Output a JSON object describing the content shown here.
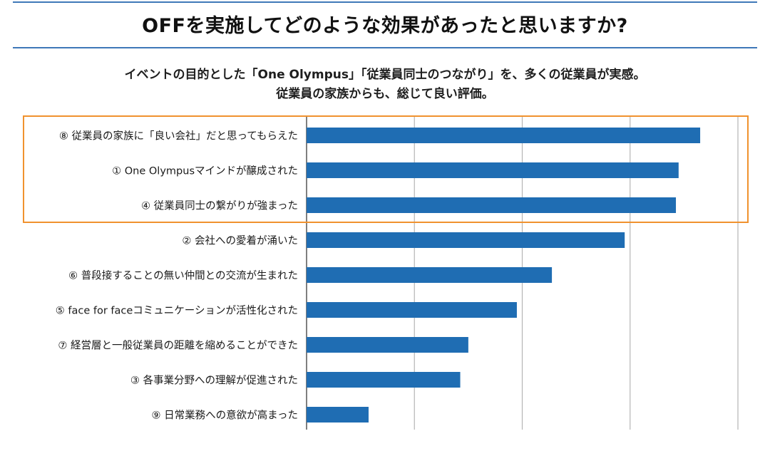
{
  "header": {
    "title": "OFFを実施してどのような効果があったと思いますか?",
    "subtitle_line1": "イベントの目的とした「One Olympus」「従業員同士のつながり」を、多くの従業員が実感。",
    "subtitle_line2": "従業員の家族からも、総じて良い評価。"
  },
  "colors": {
    "bar": "#1f6db3",
    "highlight": "#f0922e",
    "grid": "#b5b5b5",
    "axis": "#555555",
    "rule": "#3f78b8"
  },
  "chart_data": {
    "type": "bar",
    "orientation": "horizontal",
    "categories": [
      "⑧ 従業員の家族に「良い会社」だと思ってもらえた",
      "① One Olympusマインドが醸成された",
      "④ 従業員同士の繋がりが強まった",
      "② 会社への愛着が涌いた",
      "⑥ 普段接することの無い仲間との交流が生まれた",
      "⑤ face for faceコミュニケーションが活性化された",
      "⑦ 経営層と一般従業員の距離を縮めることができた",
      "③ 各事業分野への理解が促進された",
      "⑨ 日常業務への意欲が高まった"
    ],
    "values": [
      73,
      69,
      68.5,
      59,
      45.5,
      39,
      30,
      28.5,
      11.5
    ],
    "xlim": [
      0,
      80
    ],
    "grid": true,
    "tick_labels_shown": false,
    "highlighted_indices": [
      0,
      1,
      2
    ]
  }
}
